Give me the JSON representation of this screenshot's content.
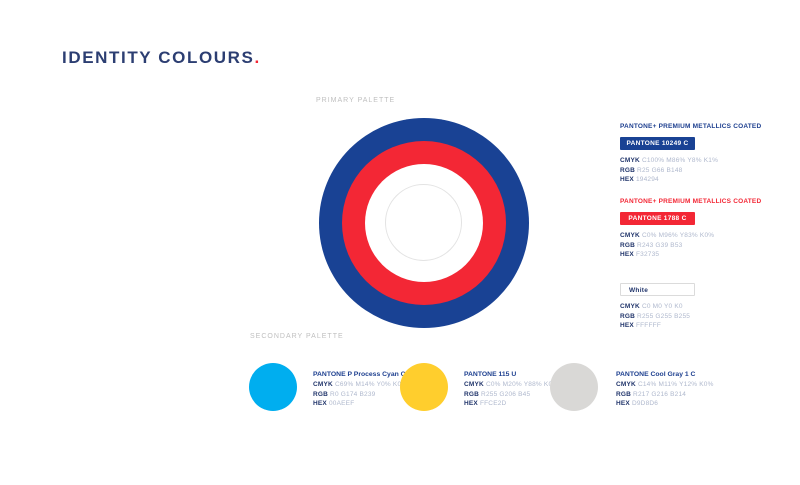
{
  "page": {
    "title": "IDENTITY COLOURS",
    "title_period": "."
  },
  "spec_labels": {
    "cmyk": "CMYK",
    "rgb": "RGB",
    "hex": "HEX"
  },
  "primary": {
    "label": "PRIMARY PALETTE",
    "swatches": [
      {
        "header": "PANTONE+ PREMIUM METALLICS COATED",
        "pill": "PANTONE 10249 C",
        "cmyk": "C100% M86% Y8% K1%",
        "rgb": "R25 G66 B148",
        "hex": "194294",
        "color": "#194294"
      },
      {
        "header": "PANTONE+ PREMIUM METALLICS COATED",
        "pill": "PANTONE 1788 C",
        "cmyk": "C0% M96% Y83% K0%",
        "rgb": "R243 G39 B53",
        "hex": "F32735",
        "color": "#F32735"
      },
      {
        "pill": "White",
        "cmyk": "C0 M0 Y0 K0",
        "rgb": "R255 G255 B255",
        "hex": "FFFFFF",
        "color": "#FFFFFF"
      }
    ]
  },
  "secondary": {
    "label": "SECONDARY PALETTE",
    "swatches": [
      {
        "name": "PANTONE P Process Cyan C",
        "cmyk": "C69% M14% Y0% K0%",
        "rgb": "R0 G174 B239",
        "hex": "00AEEF",
        "color": "#00AEEF"
      },
      {
        "name": "PANTONE 115 U",
        "cmyk": "C0% M20% Y88% K0%",
        "rgb": "R255 G206 B45",
        "hex": "FFCE2D",
        "color": "#FFCE2D"
      },
      {
        "name": "PANTONE Cool Gray 1 C",
        "cmyk": "C14% M11% Y12% K0%",
        "rgb": "R217 G216 B214",
        "hex": "D9D8D6",
        "color": "#D9D8D6"
      }
    ]
  }
}
